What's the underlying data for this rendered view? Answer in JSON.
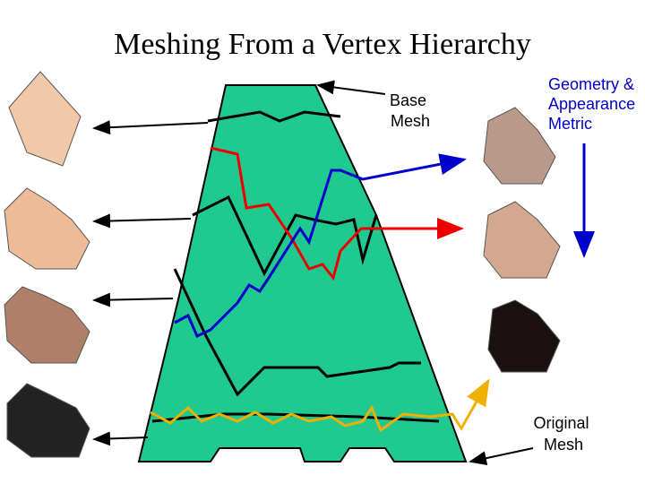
{
  "title": "Meshing From a Vertex Hierarchy",
  "labels": {
    "base_mesh": [
      "Base",
      "Mesh"
    ],
    "metric": [
      "Geometry &",
      "Appearance",
      "Metric"
    ],
    "original_mesh": [
      "Original",
      "Mesh"
    ]
  }
}
